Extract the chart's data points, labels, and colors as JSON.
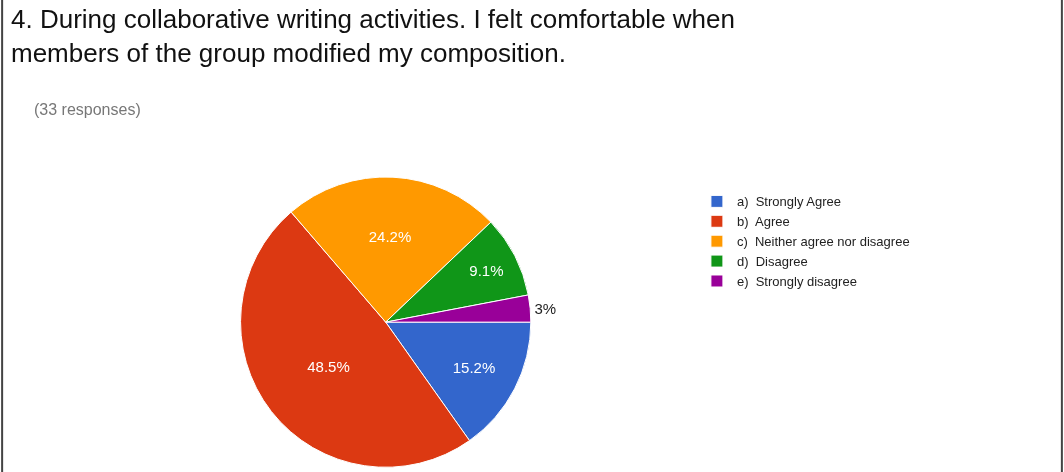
{
  "chart_data": {
    "type": "pie",
    "title": "4. During collaborative writing activities. I felt comfortable when members of the group modified my composition.",
    "subtitle": "(33 responses)",
    "categories": [
      "a)  Strongly Agree",
      "b)  Agree",
      "c)  Neither agree nor disagree",
      "d)  Disagree",
      "e)  Strongly disagree"
    ],
    "values": [
      15.2,
      48.5,
      24.2,
      9.1,
      3
    ],
    "value_labels": [
      "15.2%",
      "48.5%",
      "24.2%",
      "9.1%",
      "3%"
    ],
    "colors": [
      "#3366cc",
      "#dc3912",
      "#ff9900",
      "#109618",
      "#990099"
    ],
    "legend": "right"
  }
}
